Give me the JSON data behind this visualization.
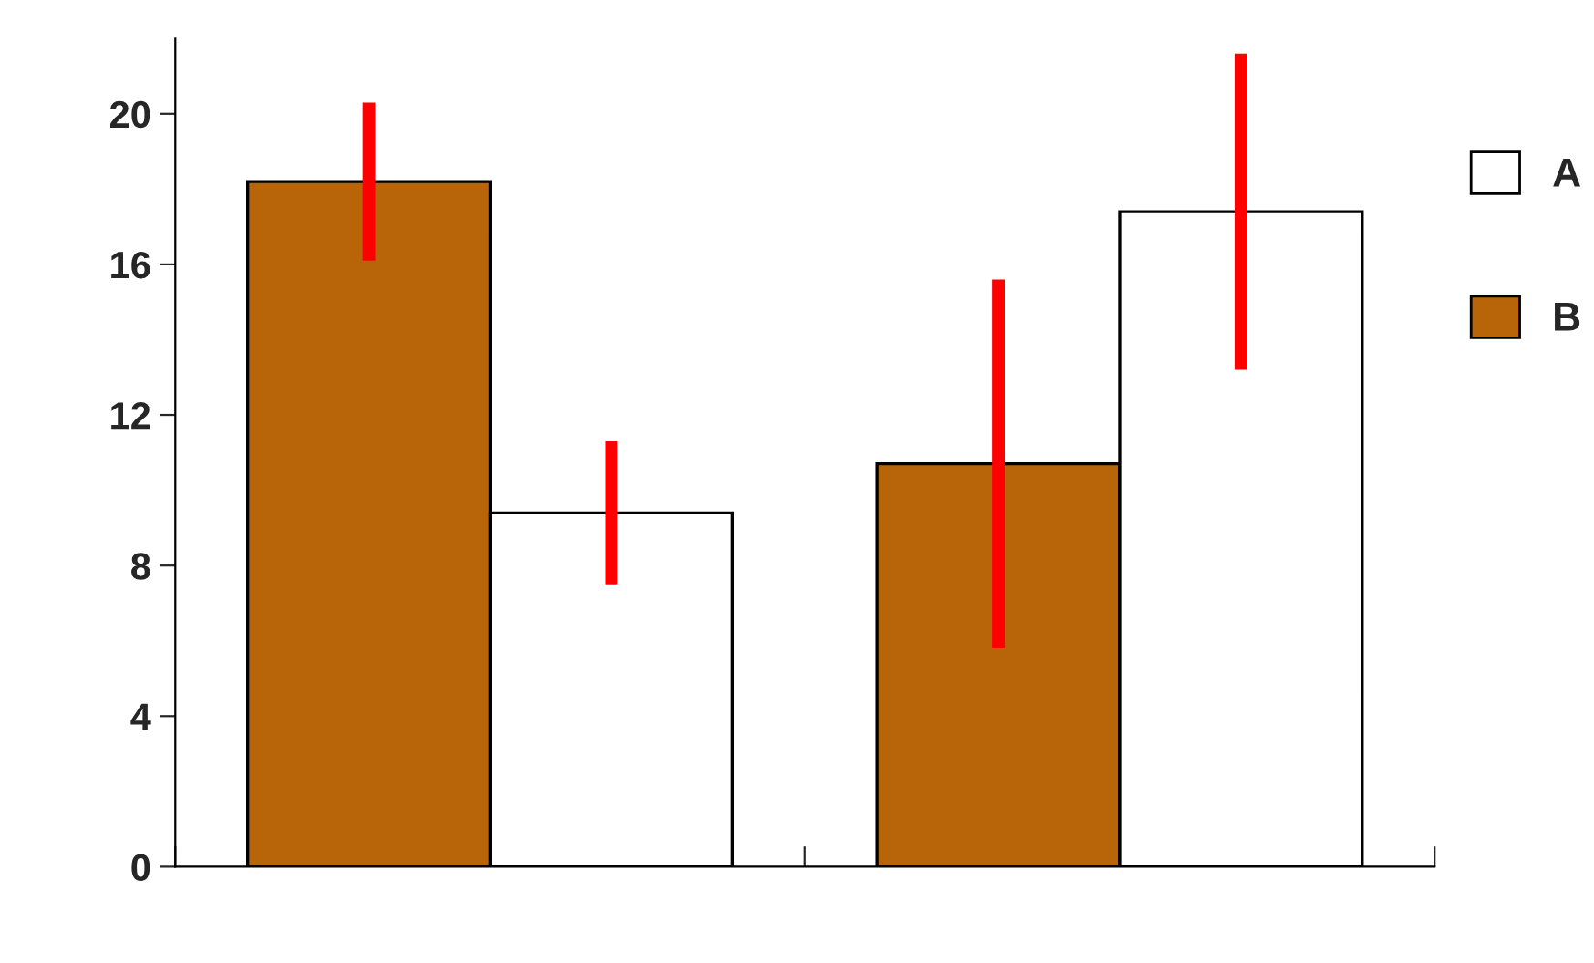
{
  "chart_data": {
    "type": "bar",
    "categories": [
      null,
      null
    ],
    "series": [
      {
        "name": "B",
        "color": "#b8650a",
        "values": [
          18.2,
          10.7
        ],
        "errors": [
          2.1,
          4.9
        ]
      },
      {
        "name": "A",
        "color": "#ffffff",
        "values": [
          9.4,
          17.4
        ],
        "errors": [
          1.9,
          4.2
        ]
      }
    ],
    "ylim": [
      0,
      22
    ],
    "yticks": [
      0,
      4,
      8,
      12,
      16,
      20
    ],
    "grid": false,
    "legend": "right"
  }
}
